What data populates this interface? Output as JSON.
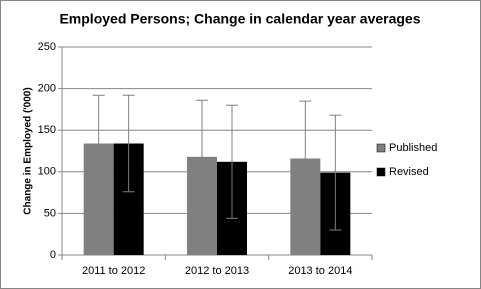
{
  "chart_data": {
    "type": "bar",
    "title": "Employed Persons; Change in calendar year averages",
    "y_label": "Change in Employed  ('000)",
    "categories": [
      "2011 to 2012",
      "2012 to 2013",
      "2013 to 2014"
    ],
    "series": [
      {
        "name": "Published",
        "color": "#808080",
        "values": [
          134,
          118,
          116
        ],
        "errors": [
          58,
          68,
          69
        ]
      },
      {
        "name": "Revised",
        "color": "#000000",
        "values": [
          134,
          112,
          99
        ],
        "errors": [
          58,
          68,
          69
        ]
      }
    ],
    "ylim": [
      0,
      250
    ],
    "yticks": [
      0,
      50,
      100,
      150,
      200,
      250
    ],
    "grid": true,
    "legend": "right"
  }
}
